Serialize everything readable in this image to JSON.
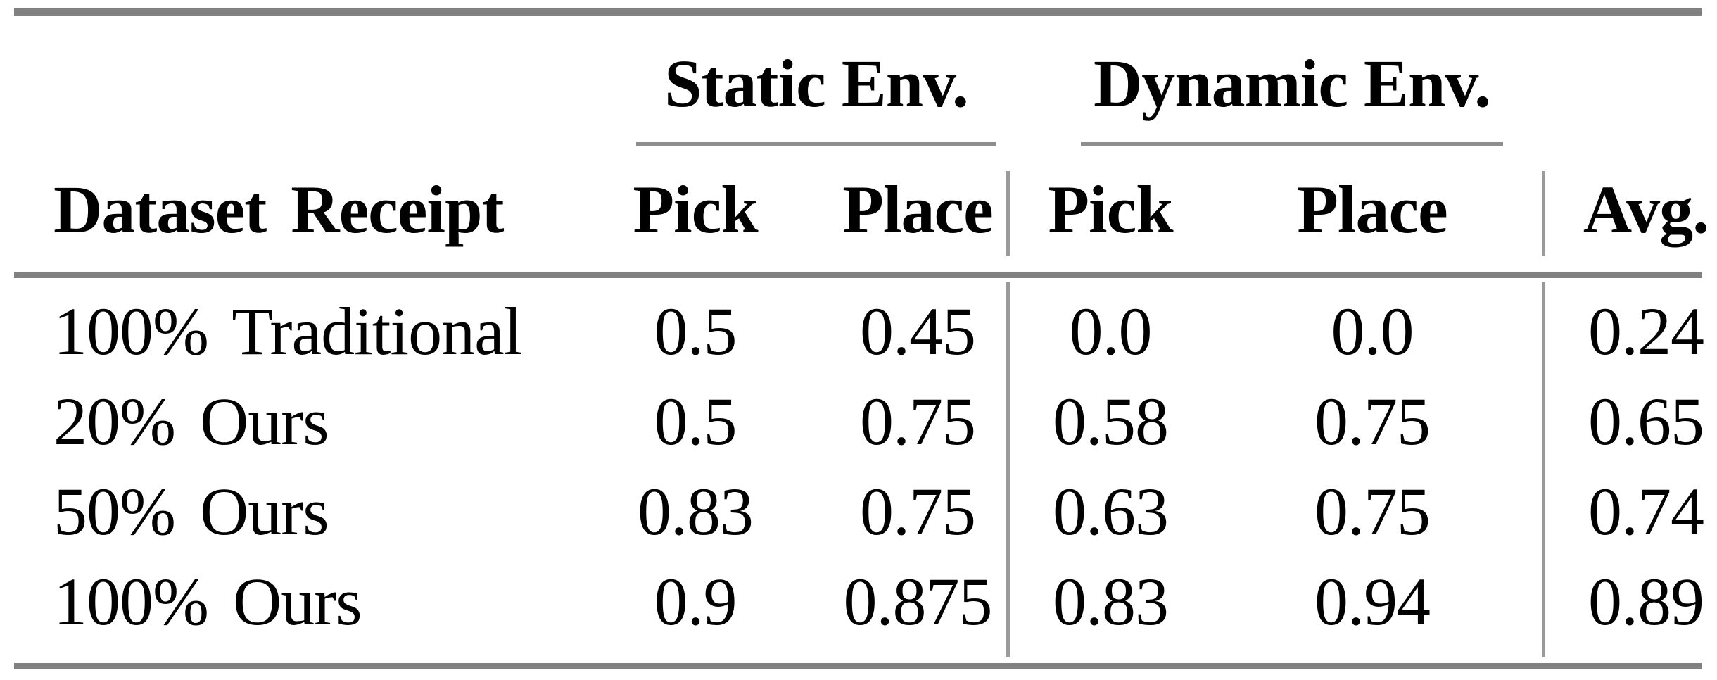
{
  "colors": {
    "background": "#ffffff",
    "text": "#000000",
    "thick_rule": "#818181",
    "thin_rule": "#8e8e8e",
    "column_divider": "#9a9a9a"
  },
  "table": {
    "group_headers": [
      {
        "label": "Static Env."
      },
      {
        "label": "Dynamic Env."
      }
    ],
    "column_headers": {
      "row_label": "Dataset Receipt",
      "static_pick": "Pick",
      "static_place": "Place",
      "dynamic_pick": "Pick",
      "dynamic_place": "Place",
      "avg": "Avg."
    },
    "rows": [
      {
        "label": "100% Traditional",
        "static_pick": "0.5",
        "static_place": "0.45",
        "dynamic_pick": "0.0",
        "dynamic_place": "0.0",
        "avg": "0.24"
      },
      {
        "label": "20% Ours",
        "static_pick": "0.5",
        "static_place": "0.75",
        "dynamic_pick": "0.58",
        "dynamic_place": "0.75",
        "avg": "0.65"
      },
      {
        "label": "50% Ours",
        "static_pick": "0.83",
        "static_place": "0.75",
        "dynamic_pick": "0.63",
        "dynamic_place": "0.75",
        "avg": "0.74"
      },
      {
        "label": "100% Ours",
        "static_pick": "0.9",
        "static_place": "0.875",
        "dynamic_pick": "0.83",
        "dynamic_place": "0.94",
        "avg": "0.89"
      }
    ]
  }
}
